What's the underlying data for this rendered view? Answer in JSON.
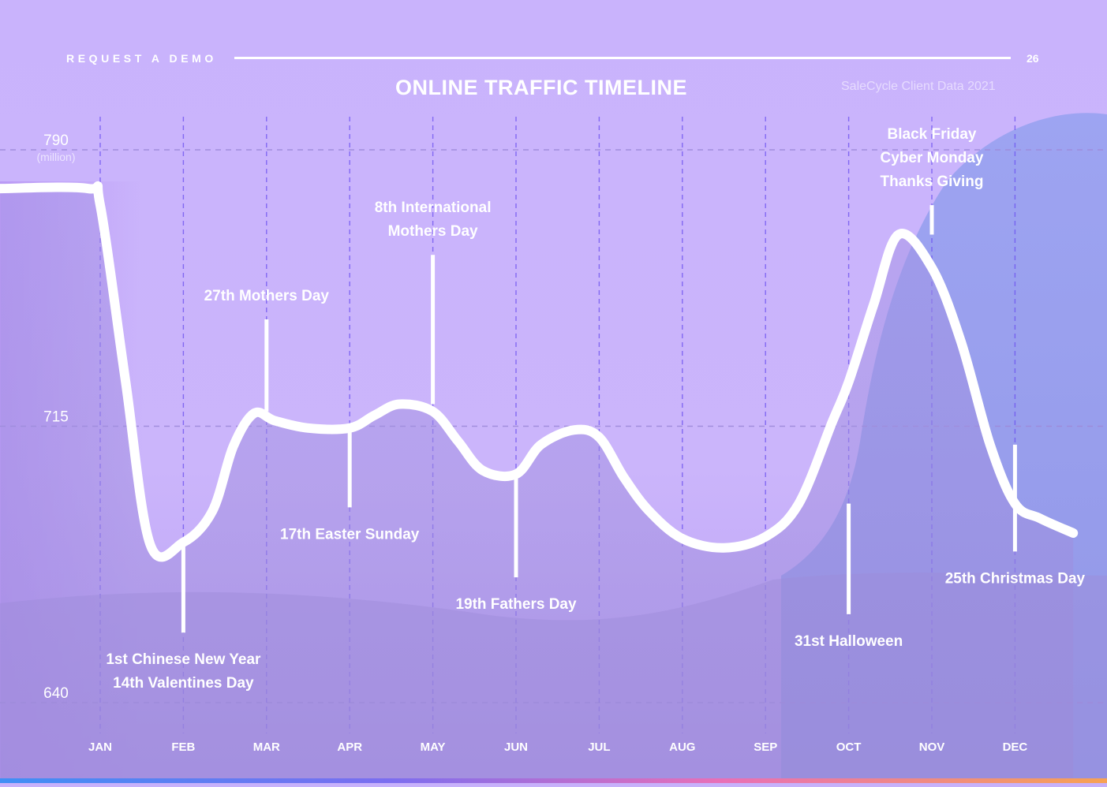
{
  "header": {
    "left_label": "REQUEST A DEMO",
    "page_number": "26"
  },
  "chart_data": {
    "type": "line",
    "title": "ONLINE TRAFFIC TIMELINE",
    "source": "SaleCycle Client Data 2021",
    "xlabel": "",
    "ylabel": "",
    "y_unit": "(million)",
    "ylim": [
      640,
      790
    ],
    "y_ticks": [
      790,
      715,
      640
    ],
    "grid": true,
    "categories": [
      "JAN",
      "FEB",
      "MAR",
      "APR",
      "MAY",
      "JUN",
      "JUL",
      "AUG",
      "SEP",
      "OCT",
      "NOV",
      "DEC"
    ],
    "series": [
      {
        "name": "Online traffic",
        "x": [
          -1.2,
          -0.15,
          0.0,
          0.3,
          0.6,
          1.0,
          1.35,
          1.6,
          1.85,
          2.1,
          2.5,
          3.0,
          3.3,
          3.6,
          4.0,
          4.3,
          4.6,
          5.0,
          5.3,
          5.7,
          6.0,
          6.3,
          6.6,
          7.0,
          7.5,
          8.0,
          8.4,
          8.8,
          9.0,
          9.3,
          9.6,
          10.0,
          10.35,
          10.7,
          11.0,
          11.3,
          11.7
        ],
        "values": [
          779.5,
          779.5,
          775,
          728,
          683,
          683.5,
          692,
          709.5,
          718.5,
          716.5,
          714.5,
          714.5,
          718,
          721,
          719,
          711,
          703,
          702,
          710,
          714,
          712,
          701,
          692,
          684.5,
          682,
          685,
          694,
          716,
          727,
          748,
          767,
          758,
          738,
          710,
          694,
          690,
          686
        ]
      }
    ],
    "annotations": [
      {
        "label": [
          "1st Chinese New Year",
          "14th Valentines Day"
        ],
        "month": 1.0,
        "value": 683.5,
        "tip": 659,
        "side": "below"
      },
      {
        "label": [
          "27th Mothers Day"
        ],
        "month": 2.0,
        "value": 719,
        "tip": 744,
        "side": "above"
      },
      {
        "label": [
          "17th Easter Sunday"
        ],
        "month": 3.0,
        "value": 714.5,
        "tip": 693,
        "side": "below"
      },
      {
        "label": [
          "8th International",
          "Mothers Day"
        ],
        "month": 4.0,
        "value": 721,
        "tip": 761.5,
        "side": "above"
      },
      {
        "label": [
          "19th Fathers Day"
        ],
        "month": 5.0,
        "value": 702,
        "tip": 674,
        "side": "below"
      },
      {
        "label": [
          "31st Halloween"
        ],
        "month": 9.0,
        "value": 694,
        "tip": 664,
        "side": "below"
      },
      {
        "label": [
          "Black Friday",
          "Cyber Monday",
          "Thanks Giving"
        ],
        "month": 10.0,
        "value": 767,
        "tip": 775,
        "side": "above"
      },
      {
        "label": [
          "25th Christmas Day"
        ],
        "month": 11.0,
        "value": 710,
        "tip": 681,
        "side": "below"
      }
    ],
    "colors": {
      "line": "#ffffff",
      "grid": "#6a4ff0",
      "hgrid": "#9d8ad9",
      "background_top": "#c7b1fb",
      "area_fill": "#9b8ad8",
      "accent_blob": "#95a0ee"
    }
  }
}
